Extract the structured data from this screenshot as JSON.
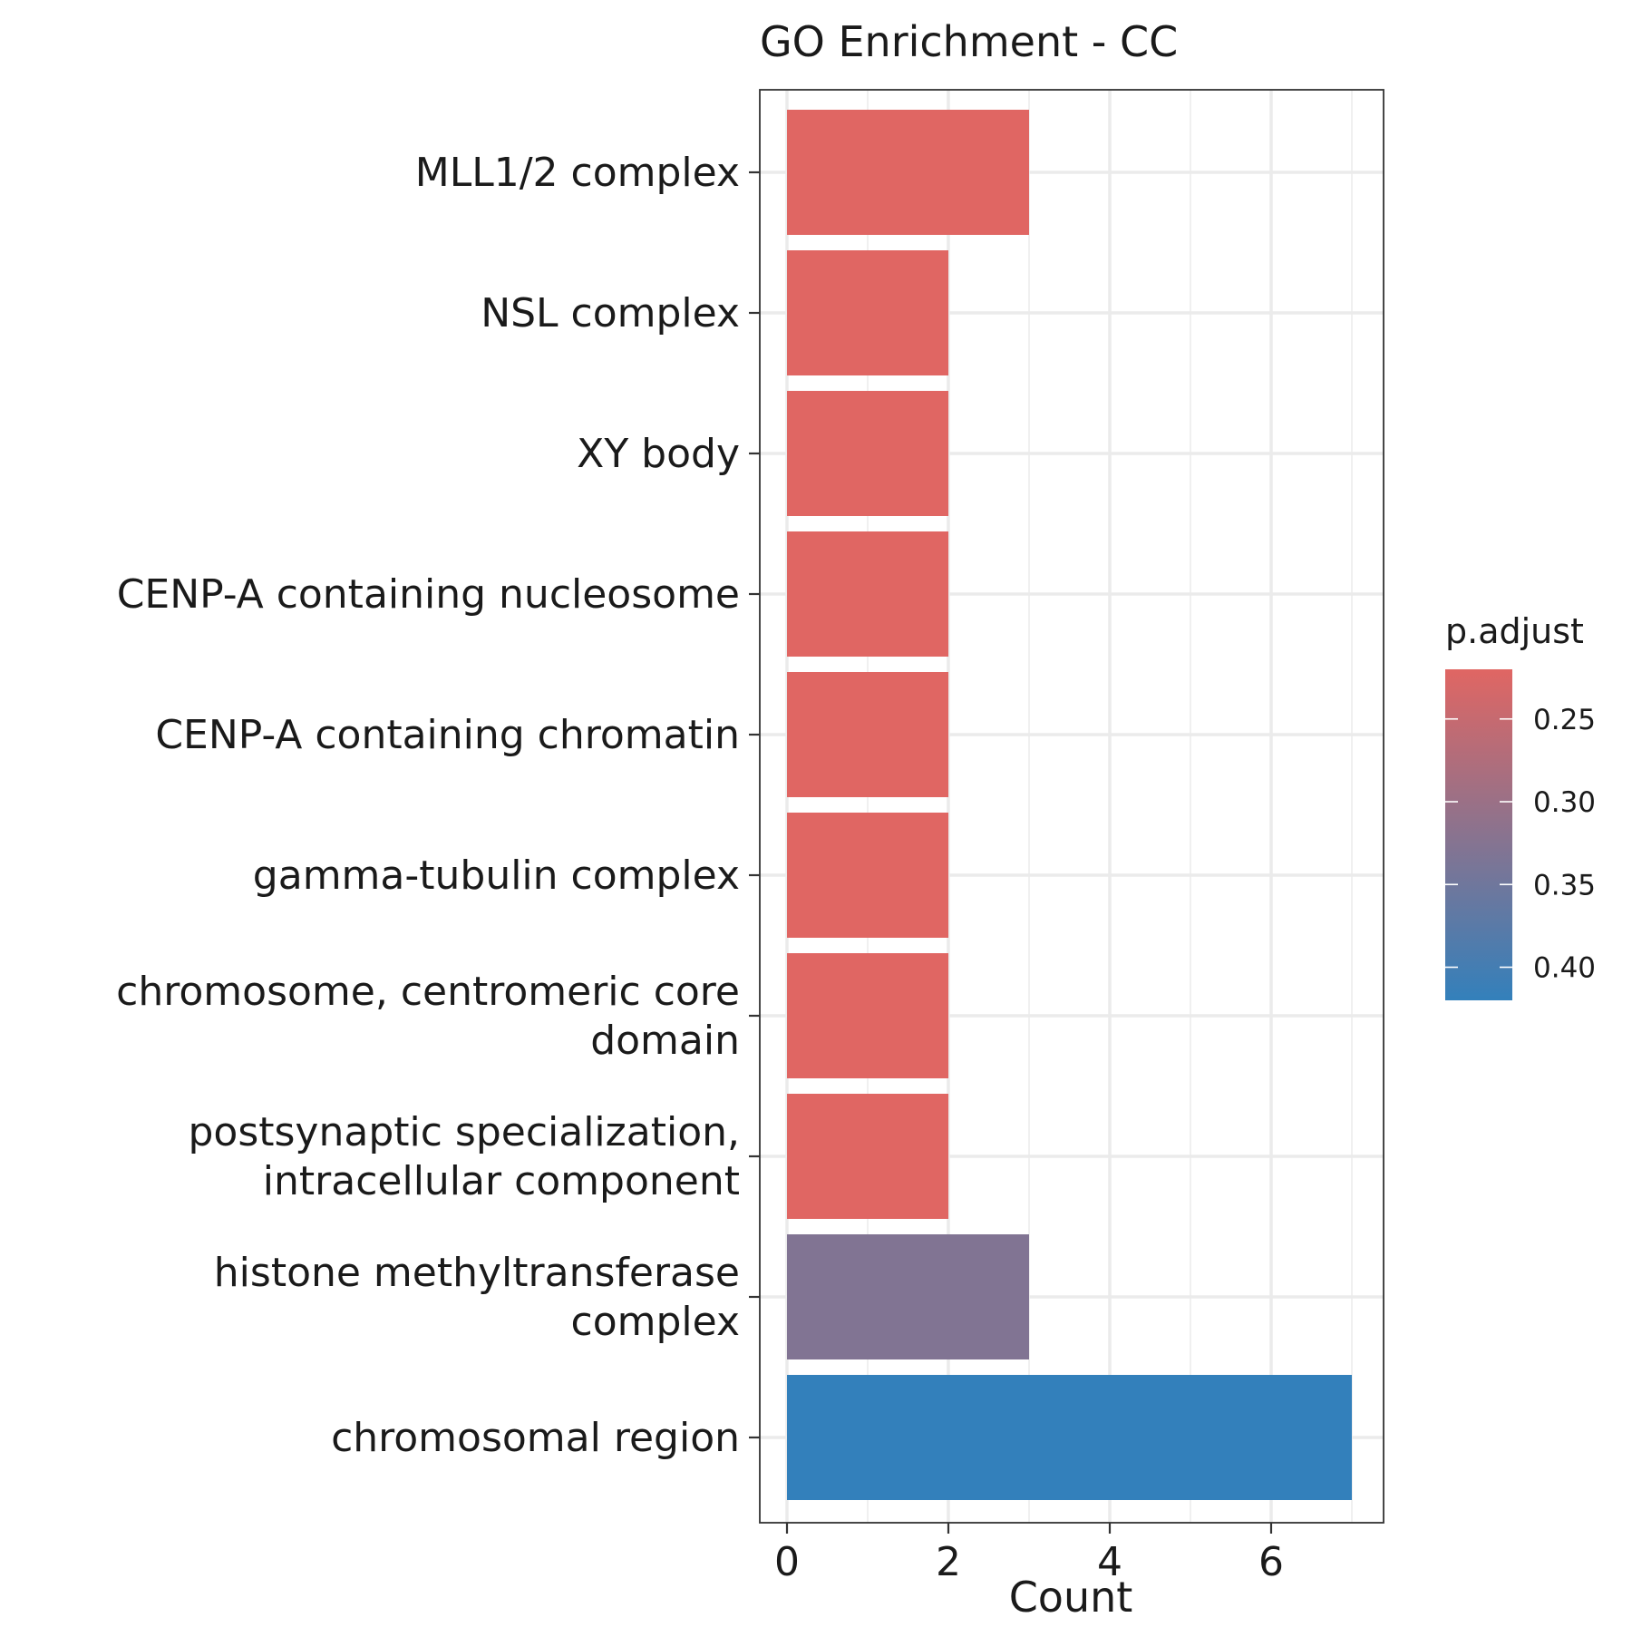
{
  "chart_data": {
    "type": "bar",
    "orientation": "horizontal",
    "title": "GO Enrichment - CC",
    "xlabel": "Count",
    "ylabel": "",
    "xlim": [
      0,
      7
    ],
    "x_ticks": [
      "0",
      "2",
      "4",
      "6"
    ],
    "grid": true,
    "categories": [
      "MLL1/2 complex",
      "NSL complex",
      "XY body",
      "CENP-A containing nucleosome",
      "CENP-A containing chromatin",
      "gamma-tubulin complex",
      "chromosome, centromeric core domain",
      "postsynaptic specialization, intracellular component",
      "histone methyltransferase complex",
      "chromosomal region"
    ],
    "category_lines": [
      [
        "MLL1/2 complex"
      ],
      [
        "NSL complex"
      ],
      [
        "XY body"
      ],
      [
        "CENP-A containing nucleosome"
      ],
      [
        "CENP-A containing chromatin"
      ],
      [
        "gamma-tubulin complex"
      ],
      [
        "chromosome, centromeric core",
        "domain"
      ],
      [
        "postsynaptic specialization,",
        "intracellular component"
      ],
      [
        "histone methyltransferase",
        "complex"
      ],
      [
        "chromosomal region"
      ]
    ],
    "values": [
      3,
      2,
      2,
      2,
      2,
      2,
      2,
      2,
      3,
      7
    ],
    "p_adjust": [
      0.22,
      0.22,
      0.22,
      0.22,
      0.22,
      0.22,
      0.22,
      0.22,
      0.33,
      0.42
    ],
    "legend": {
      "title": "p.adjust",
      "placement": "right",
      "range": [
        0.22,
        0.42
      ],
      "ticks": [
        "0.25",
        "0.30",
        "0.35",
        "0.40"
      ],
      "low_color": "#E06663",
      "high_color": "#3380BB"
    }
  }
}
